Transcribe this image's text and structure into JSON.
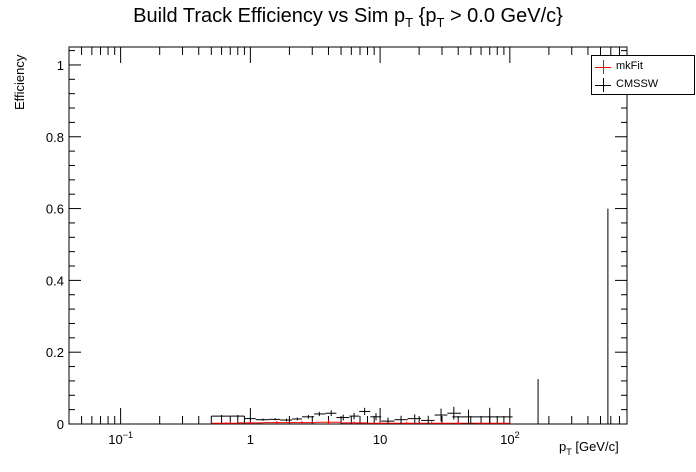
{
  "title": {
    "part1": "Build Track Efficiency vs Sim p",
    "sub1": "T",
    "part2": " {p",
    "sub2": "T",
    "part3": " > 0.0 GeV/c}"
  },
  "y_axis_label": "Efficiency",
  "x_axis_label": {
    "base": "p",
    "sub": "T",
    "unit": " [GeV/c]"
  },
  "legend": [
    {
      "label": "mkFit",
      "color": "#ff0000"
    },
    {
      "label": "CMSSW",
      "color": "#000000"
    }
  ],
  "chart_data": {
    "type": "scatter",
    "x_scale": "log",
    "xlim": [
      0.04,
      800
    ],
    "ylim": [
      0,
      1.05
    ],
    "x_ticks": [
      {
        "value": 0.1,
        "label": "10",
        "exp": "−1"
      },
      {
        "value": 1,
        "label": "1",
        "exp": ""
      },
      {
        "value": 10,
        "label": "10",
        "exp": ""
      },
      {
        "value": 100,
        "label": "10",
        "exp": "2"
      }
    ],
    "y_ticks": [
      {
        "value": 0,
        "label": "0"
      },
      {
        "value": 0.2,
        "label": "0.2"
      },
      {
        "value": 0.4,
        "label": "0.4"
      },
      {
        "value": 0.6,
        "label": "0.6"
      },
      {
        "value": 0.8,
        "label": "0.8"
      },
      {
        "value": 1,
        "label": "1"
      }
    ],
    "series": [
      {
        "name": "mkFit",
        "color": "#ff0000",
        "points": [
          {
            "x": 0.65,
            "xlo": 0.5,
            "xhi": 0.8,
            "y": 0.002,
            "err": 0.003
          },
          {
            "x": 1.0,
            "xlo": 0.8,
            "xhi": 1.25,
            "y": 0.003,
            "err": 0.003
          },
          {
            "x": 1.6,
            "xlo": 1.25,
            "xhi": 2.0,
            "y": 0.004,
            "err": 0.004
          },
          {
            "x": 2.5,
            "xlo": 2.0,
            "xhi": 3.2,
            "y": 0.004,
            "err": 0.004
          },
          {
            "x": 4.0,
            "xlo": 3.2,
            "xhi": 5.0,
            "y": 0.005,
            "err": 0.005
          },
          {
            "x": 6.3,
            "xlo": 5.0,
            "xhi": 8.0,
            "y": 0.003,
            "err": 0.004
          },
          {
            "x": 10,
            "xlo": 8.0,
            "xhi": 12.5,
            "y": 0.002,
            "err": 0.004
          },
          {
            "x": 16,
            "xlo": 12.5,
            "xhi": 20,
            "y": 0.002,
            "err": 0.004
          },
          {
            "x": 25,
            "xlo": 20,
            "xhi": 32,
            "y": 0.002,
            "err": 0.005
          },
          {
            "x": 40,
            "xlo": 32,
            "xhi": 50,
            "y": 0.002,
            "err": 0.006
          },
          {
            "x": 70,
            "xlo": 50,
            "xhi": 100,
            "y": 0.002,
            "err": 0.006
          }
        ]
      },
      {
        "name": "CMSSW",
        "color": "#000000",
        "points": [
          {
            "x": 0.6,
            "xlo": 0.5,
            "xhi": 0.7,
            "y": 0.022,
            "err": 0.003
          },
          {
            "x": 0.8,
            "xlo": 0.7,
            "xhi": 0.9,
            "y": 0.022,
            "err": 0.003
          },
          {
            "x": 1.0,
            "xlo": 0.9,
            "xhi": 1.1,
            "y": 0.015,
            "err": 0.003
          },
          {
            "x": 1.25,
            "xlo": 1.1,
            "xhi": 1.4,
            "y": 0.012,
            "err": 0.003
          },
          {
            "x": 1.55,
            "xlo": 1.4,
            "xhi": 1.7,
            "y": 0.013,
            "err": 0.003
          },
          {
            "x": 1.9,
            "xlo": 1.7,
            "xhi": 2.1,
            "y": 0.011,
            "err": 0.004
          },
          {
            "x": 2.3,
            "xlo": 2.1,
            "xhi": 2.5,
            "y": 0.014,
            "err": 0.004
          },
          {
            "x": 2.8,
            "xlo": 2.5,
            "xhi": 3.1,
            "y": 0.02,
            "err": 0.005
          },
          {
            "x": 3.4,
            "xlo": 3.1,
            "xhi": 3.8,
            "y": 0.028,
            "err": 0.006
          },
          {
            "x": 4.2,
            "xlo": 3.8,
            "xhi": 4.6,
            "y": 0.03,
            "err": 0.008
          },
          {
            "x": 5.2,
            "xlo": 4.6,
            "xhi": 5.8,
            "y": 0.018,
            "err": 0.008
          },
          {
            "x": 6.3,
            "xlo": 5.8,
            "xhi": 6.9,
            "y": 0.022,
            "err": 0.009
          },
          {
            "x": 7.6,
            "xlo": 6.9,
            "xhi": 8.4,
            "y": 0.035,
            "err": 0.01
          },
          {
            "x": 9.3,
            "xlo": 8.4,
            "xhi": 10.2,
            "y": 0.02,
            "err": 0.01
          },
          {
            "x": 11.5,
            "xlo": 10.2,
            "xhi": 12.9,
            "y": 0.008,
            "err": 0.01
          },
          {
            "x": 14.5,
            "xlo": 12.9,
            "xhi": 16.3,
            "y": 0.012,
            "err": 0.011
          },
          {
            "x": 18.5,
            "xlo": 16.3,
            "xhi": 20.7,
            "y": 0.015,
            "err": 0.012
          },
          {
            "x": 23.5,
            "xlo": 20.7,
            "xhi": 26.3,
            "y": 0.01,
            "err": 0.013
          },
          {
            "x": 29.5,
            "xlo": 26.3,
            "xhi": 33,
            "y": 0.025,
            "err": 0.018
          },
          {
            "x": 37,
            "xlo": 33,
            "xhi": 42,
            "y": 0.03,
            "err": 0.018
          },
          {
            "x": 48,
            "xlo": 42,
            "xhi": 55,
            "y": 0.0,
            "err": 0.04
          },
          {
            "x": 70,
            "xlo": 36,
            "xhi": 105,
            "y": 0.02,
            "err": 0.025
          },
          {
            "x": 165,
            "xlo": 165,
            "xhi": 165,
            "y": 0.0,
            "err": 0.125
          },
          {
            "x": 570,
            "xlo": 570,
            "xhi": 570,
            "y": 0.0,
            "err": 0.6
          }
        ]
      }
    ]
  }
}
